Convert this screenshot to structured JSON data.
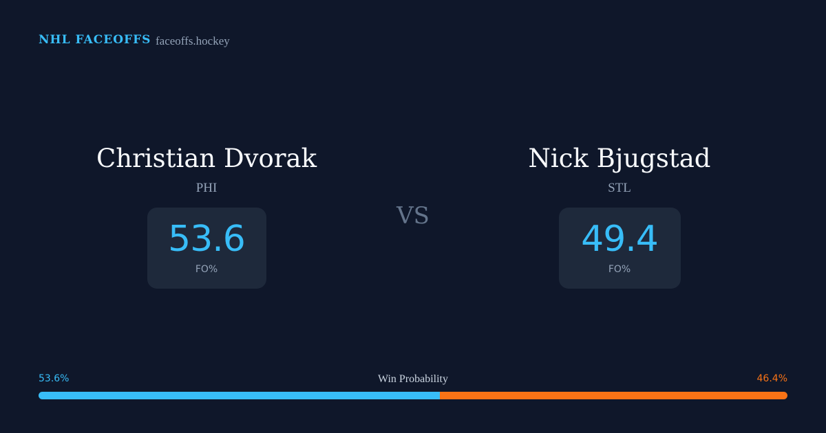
{
  "header": {
    "brand": "NHL FACEOFFS",
    "site": "faceoffs.hockey"
  },
  "players": [
    {
      "name": "Christian Dvorak",
      "team": "PHI",
      "fo_pct": 53.6,
      "fo_label": "FO%"
    },
    {
      "name": "Nick Bjugstad",
      "team": "STL",
      "fo_pct": 49.4,
      "fo_label": "FO%"
    }
  ],
  "vs": "VS",
  "win_probability": {
    "label": "Win Probability",
    "home": {
      "value": 53.6,
      "label": "53.6%",
      "color": "#38bdf8"
    },
    "away": {
      "value": 46.4,
      "label": "46.4%",
      "color": "#f97316"
    }
  }
}
